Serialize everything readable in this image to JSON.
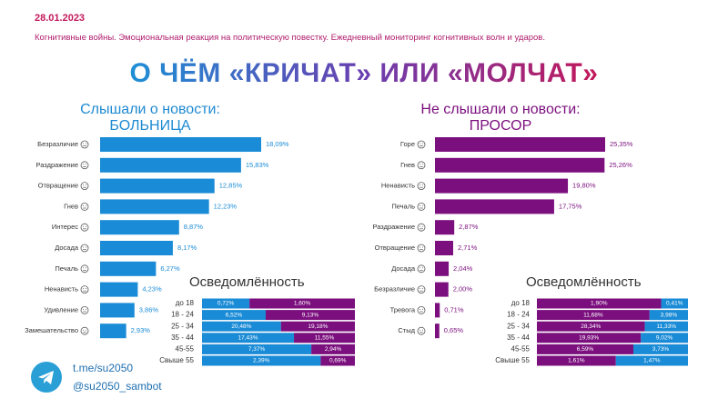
{
  "date": "28.01.2023",
  "subtitle": "Когнитивные войны. Эмоциональная реакция на политическую повестку. Ежедневный мониторинг когнитивных волн и ударов.",
  "title": "О ЧЁМ «КРИЧАТ» ИЛИ «МОЛЧАТ»",
  "left": {
    "heading_line1": "Слышали о новости:",
    "heading_line2": "БОЛЬНИЦА"
  },
  "right": {
    "heading_line1": "Не слышали о новости:",
    "heading_line2": "ПРОСОР"
  },
  "osv_left": "Осведомлённость",
  "osv_right": "Осведомлённость",
  "footer": {
    "channel": "t.me/su2050",
    "bot": "@su2050_sambot"
  },
  "colors": {
    "blue": "#1a8bd6",
    "purple": "#7b0f7e",
    "accent": "#c2185b"
  },
  "chart_data": [
    {
      "type": "bar",
      "orientation": "horizontal",
      "title": "Слышали о новости: БОЛЬНИЦА",
      "categories": [
        "Безразличие",
        "Раздражение",
        "Отвращение",
        "Гнев",
        "Интерес",
        "Досада",
        "Печаль",
        "Ненависть",
        "Удивление",
        "Замешательство"
      ],
      "values": [
        18.09,
        15.83,
        12.85,
        12.23,
        8.87,
        8.17,
        6.27,
        4.23,
        3.86,
        2.93
      ],
      "labels": [
        "18,09%",
        "15,83%",
        "12,85%",
        "12,23%",
        "8,87%",
        "8,17%",
        "6,27%",
        "4,23%",
        "3,86%",
        "2,93%"
      ],
      "color": "#1a8bd6",
      "xlim": [
        0,
        18.09
      ]
    },
    {
      "type": "bar",
      "orientation": "horizontal",
      "title": "Не слышали о новости: ПРОСОР",
      "categories": [
        "Горе",
        "Гнев",
        "Ненависть",
        "Печаль",
        "Раздражение",
        "Отвращение",
        "Досада",
        "Безразличие",
        "Тревога",
        "Стыд"
      ],
      "values": [
        25.35,
        25.26,
        19.8,
        17.75,
        2.87,
        2.71,
        2.04,
        2.0,
        0.71,
        0.65
      ],
      "labels": [
        "25,35%",
        "25,26%",
        "19,80%",
        "17,75%",
        "2,87%",
        "2,71%",
        "2,04%",
        "2,00%",
        "0,71%",
        "0,65%"
      ],
      "color": "#7b0f7e",
      "xlim": [
        0,
        25.35
      ]
    },
    {
      "type": "bar",
      "stacked": true,
      "orientation": "horizontal",
      "title": "Осведомлённость",
      "categories": [
        "до 18",
        "18 - 24",
        "25 - 34",
        "35 - 44",
        "45-55",
        "Свыше 55"
      ],
      "series": [
        {
          "values": [
            0.72,
            6.52,
            20.48,
            17.43,
            7.37,
            2.39
          ],
          "labels": [
            "0,72%",
            "6,52%",
            "20,48%",
            "17,43%",
            "7,37%",
            "2,39%"
          ],
          "color": "#1a8bd6"
        },
        {
          "values": [
            1.6,
            9.13,
            19.18,
            11.55,
            2.94,
            0.69
          ],
          "labels": [
            "1,60%",
            "9,13%",
            "19,18%",
            "11,55%",
            "2,94%",
            "0,69%"
          ],
          "color": "#7b0f7e"
        }
      ]
    },
    {
      "type": "bar",
      "stacked": true,
      "orientation": "horizontal",
      "title": "Осведомлённость",
      "categories": [
        "до 18",
        "18 - 24",
        "25 - 34",
        "35 - 44",
        "45-55",
        "Свыше 55"
      ],
      "series": [
        {
          "values": [
            1.9,
            11.68,
            28.34,
            19.93,
            6.59,
            1.61
          ],
          "labels": [
            "1,90%",
            "11,68%",
            "28,34%",
            "19,93%",
            "6,59%",
            "1,61%"
          ],
          "color": "#7b0f7e"
        },
        {
          "values": [
            0.41,
            3.98,
            11.33,
            9.02,
            3.73,
            1.47
          ],
          "labels": [
            "0,41%",
            "3,98%",
            "11,33%",
            "9,02%",
            "3,73%",
            "1,47%"
          ],
          "color": "#1a8bd6"
        }
      ]
    }
  ]
}
